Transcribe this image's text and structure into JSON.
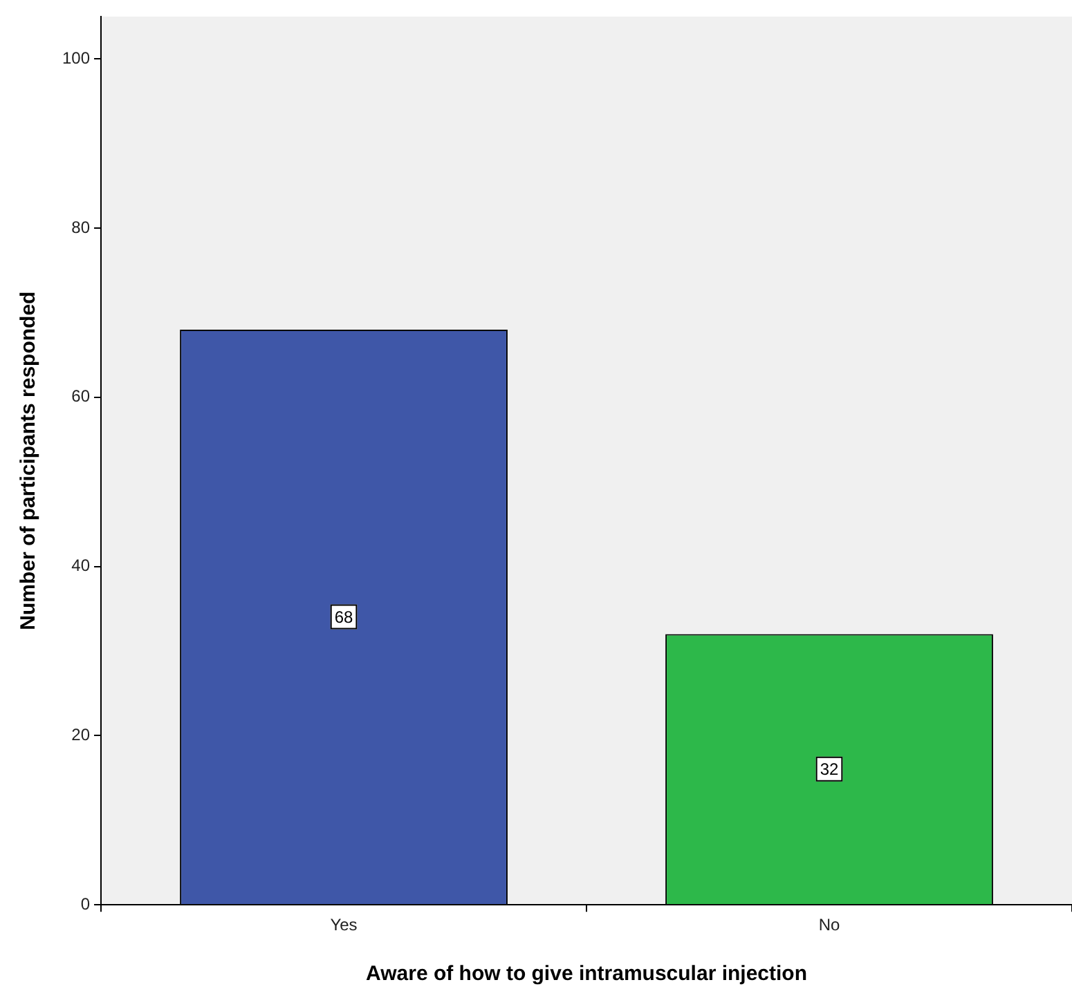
{
  "chart_data": {
    "type": "bar",
    "xlabel": "Aware of how to give intramuscular injection",
    "ylabel": "Number of participants responded",
    "categories": [
      "Yes",
      "No"
    ],
    "values": [
      68,
      32
    ],
    "colors": [
      "#3f57a8",
      "#2db84a"
    ],
    "ylim": [
      0,
      105
    ],
    "yticks": [
      0,
      20,
      40,
      60,
      80,
      100
    ],
    "grid": false,
    "legend": false,
    "data_labels": true
  }
}
